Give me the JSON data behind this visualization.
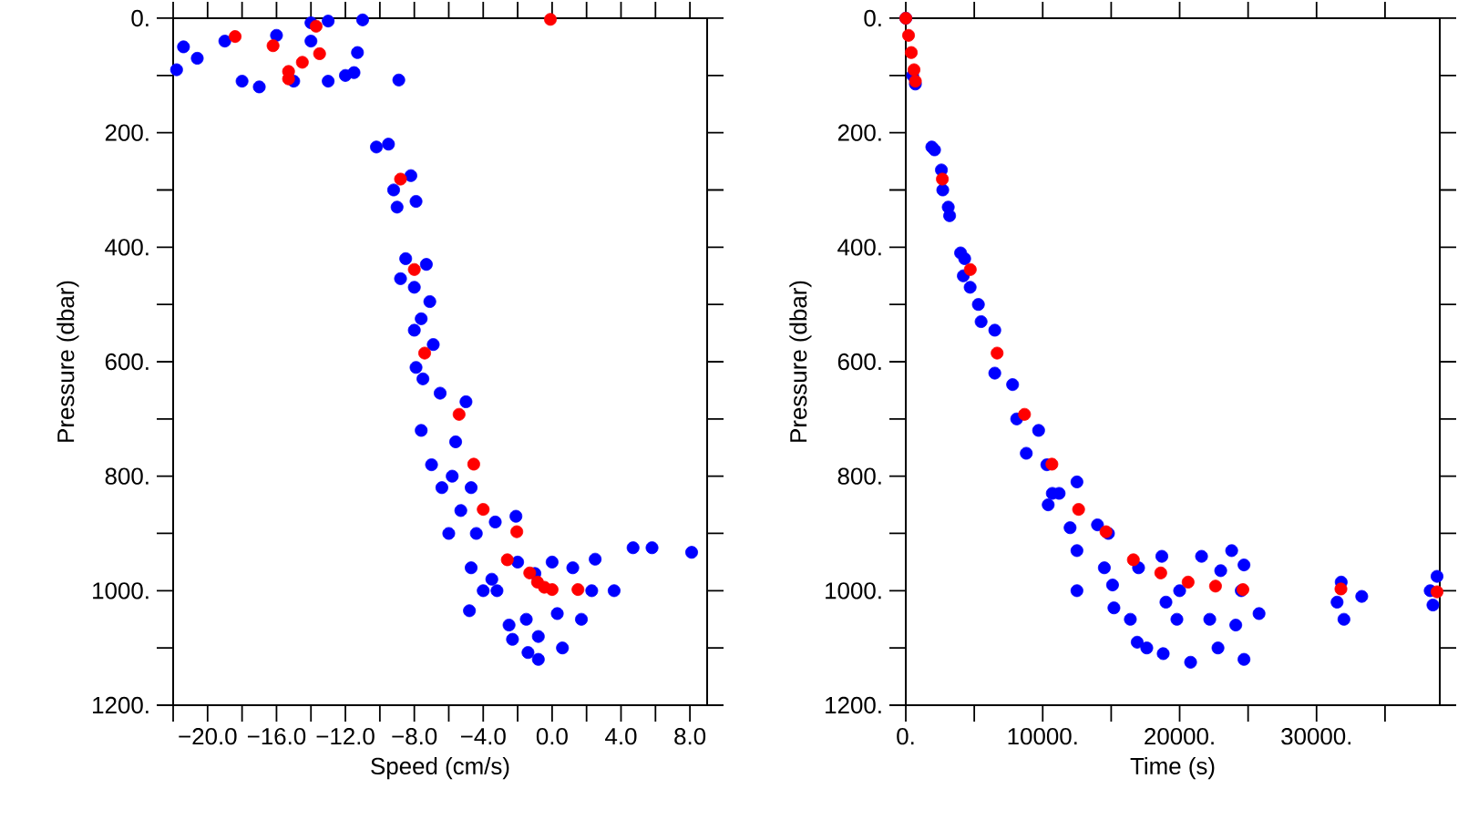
{
  "chart_data": [
    {
      "type": "scatter",
      "xlabel": "Speed (cm/s)",
      "ylabel": "Pressure (dbar)",
      "grid": false,
      "legend": false,
      "xlim": [
        -22,
        9
      ],
      "ylim": [
        1200,
        0
      ],
      "xticks": [
        {
          "value": -22,
          "label": null
        },
        {
          "value": -20,
          "label": "−20.0"
        },
        {
          "value": -18,
          "label": null
        },
        {
          "value": -16,
          "label": "−16.0"
        },
        {
          "value": -14,
          "label": null
        },
        {
          "value": -12,
          "label": "−12.0"
        },
        {
          "value": -10,
          "label": null
        },
        {
          "value": -8,
          "label": "−8.0"
        },
        {
          "value": -6,
          "label": null
        },
        {
          "value": -4,
          "label": "−4.0"
        },
        {
          "value": -2,
          "label": null
        },
        {
          "value": 0,
          "label": "0.0"
        },
        {
          "value": 2,
          "label": null
        },
        {
          "value": 4,
          "label": "4.0"
        },
        {
          "value": 6,
          "label": null
        },
        {
          "value": 8,
          "label": "8.0"
        }
      ],
      "yticks": [
        {
          "value": 0,
          "label": "0."
        },
        {
          "value": 100,
          "label": null
        },
        {
          "value": 200,
          "label": "200."
        },
        {
          "value": 300,
          "label": null
        },
        {
          "value": 400,
          "label": "400."
        },
        {
          "value": 500,
          "label": null
        },
        {
          "value": 600,
          "label": "600."
        },
        {
          "value": 700,
          "label": null
        },
        {
          "value": 800,
          "label": "800."
        },
        {
          "value": 900,
          "label": null
        },
        {
          "value": 1000,
          "label": "1000."
        },
        {
          "value": 1100,
          "label": null
        },
        {
          "value": 1200,
          "label": "1200."
        }
      ],
      "series": [
        {
          "color": "#0000ff",
          "x": [
            -21.4,
            -21.8,
            -20.6,
            -19,
            -18,
            -17,
            -16,
            -15,
            -14,
            -13,
            -12,
            -11.3,
            -11.5,
            -13,
            -11,
            -14,
            -8.9,
            -10.2,
            -9.5,
            -9.2,
            -8.2,
            -7.9,
            -9,
            -8.5,
            -7.3,
            -8.8,
            -8,
            -7.6,
            -7.1,
            -8,
            -6.9,
            -7.9,
            -7.5,
            -6.5,
            -5,
            -7.6,
            -5.6,
            -7,
            -5.8,
            -6.4,
            -4.7,
            -5.3,
            -6,
            -4.4,
            -3.3,
            -2.1,
            -4.7,
            -3.5,
            -2,
            -1,
            0,
            1.2,
            2.5,
            2.3,
            3.6,
            4.7,
            5.8,
            8.1,
            -4.8,
            -2.5,
            -2.3,
            -1.4,
            -0.8,
            -0.8,
            0.6,
            -1.5,
            1.7,
            0.3,
            -3.2,
            -4
          ],
          "values": [
            50,
            90,
            70,
            40,
            110,
            120,
            30,
            110,
            40,
            110,
            100,
            60,
            95,
            5,
            3,
            8,
            108,
            225,
            220,
            300,
            275,
            320,
            330,
            420,
            430,
            455,
            470,
            525,
            495,
            545,
            570,
            610,
            630,
            655,
            670,
            720,
            740,
            780,
            800,
            820,
            820,
            860,
            900,
            900,
            880,
            870,
            960,
            980,
            950,
            970,
            950,
            960,
            945,
            1000,
            1000,
            925,
            925,
            933,
            1035,
            1060,
            1085,
            1108,
            1120,
            1080,
            1100,
            1050,
            1050,
            1040,
            1000,
            1000
          ]
        },
        {
          "color": "#ff0000",
          "x": [
            -18.4,
            -16.2,
            -13.7,
            -13.5,
            -14.5,
            -15.3,
            -15.3,
            -0.1,
            -8.8,
            -8,
            -7.4,
            -5.4,
            -4.55,
            -4,
            -2.05,
            -2.6,
            -1.3,
            -0.85,
            -0.45,
            -0.2,
            0,
            1.5
          ],
          "values": [
            32,
            48,
            14,
            62,
            77,
            93,
            106,
            2,
            281,
            439,
            585,
            692,
            779,
            858,
            897,
            946,
            969,
            985,
            994,
            null,
            998,
            998
          ]
        }
      ]
    },
    {
      "type": "scatter",
      "xlabel": "Time (s)",
      "ylabel": "Pressure (dbar)",
      "grid": false,
      "legend": false,
      "xlim": [
        0,
        39000
      ],
      "ylim": [
        1200,
        0
      ],
      "xticks": [
        {
          "value": 0,
          "label": "0."
        },
        {
          "value": 5000,
          "label": null
        },
        {
          "value": 10000,
          "label": "10000."
        },
        {
          "value": 15000,
          "label": null
        },
        {
          "value": 20000,
          "label": "20000."
        },
        {
          "value": 25000,
          "label": null
        },
        {
          "value": 30000,
          "label": "30000."
        },
        {
          "value": 35000,
          "label": null
        }
      ],
      "yticks": [
        {
          "value": 0,
          "label": "0."
        },
        {
          "value": 100,
          "label": null
        },
        {
          "value": 200,
          "label": "200."
        },
        {
          "value": 300,
          "label": null
        },
        {
          "value": 400,
          "label": "400."
        },
        {
          "value": 500,
          "label": null
        },
        {
          "value": 600,
          "label": "600."
        },
        {
          "value": 700,
          "label": null
        },
        {
          "value": 800,
          "label": "800."
        },
        {
          "value": 900,
          "label": null
        },
        {
          "value": 1000,
          "label": "1000."
        },
        {
          "value": 1100,
          "label": null
        },
        {
          "value": 1200,
          "label": "1200."
        }
      ],
      "series": [
        {
          "color": "#0000ff",
          "x": [
            0,
            500,
            700,
            1900,
            2100,
            2600,
            2700,
            3100,
            3200,
            4000,
            4300,
            4200,
            4700,
            5300,
            5500,
            6500,
            6500,
            7800,
            8100,
            8800,
            9700,
            10300,
            10400,
            11200,
            12500,
            12000,
            12500,
            14000,
            14800,
            14500,
            15100,
            15200,
            16400,
            17000,
            16900,
            17600,
            18700,
            19000,
            18800,
            19800,
            20800,
            21600,
            22200,
            22800,
            23000,
            23800,
            24100,
            24700,
            24700,
            25800,
            24500,
            31500,
            32000,
            31800,
            33300,
            38300,
            38500,
            38800,
            20000,
            12500,
            10700
          ],
          "values": [
            0,
            100,
            115,
            225,
            230,
            265,
            300,
            330,
            345,
            410,
            420,
            450,
            470,
            500,
            530,
            545,
            620,
            640,
            700,
            760,
            720,
            780,
            850,
            830,
            810,
            890,
            930,
            885,
            900,
            960,
            990,
            1030,
            1050,
            960,
            1090,
            1100,
            940,
            1020,
            1110,
            1050,
            1125,
            940,
            1050,
            1100,
            965,
            930,
            1060,
            955,
            1120,
            1040,
            1000,
            1020,
            1050,
            985,
            1010,
            1000,
            1025,
            975,
            1000,
            1000,
            830
          ]
        },
        {
          "color": "#ff0000",
          "x": [
            0,
            200,
            400,
            600,
            700,
            2670,
            4710,
            6670,
            8670,
            10670,
            12620,
            14620,
            16620,
            18620,
            20620,
            22620,
            24620,
            31780,
            38800
          ],
          "values": [
            0,
            30,
            60,
            90,
            110,
            281,
            439,
            585,
            692,
            779,
            858,
            897,
            946,
            969,
            985,
            992,
            998,
            997,
            1002
          ]
        }
      ]
    }
  ]
}
